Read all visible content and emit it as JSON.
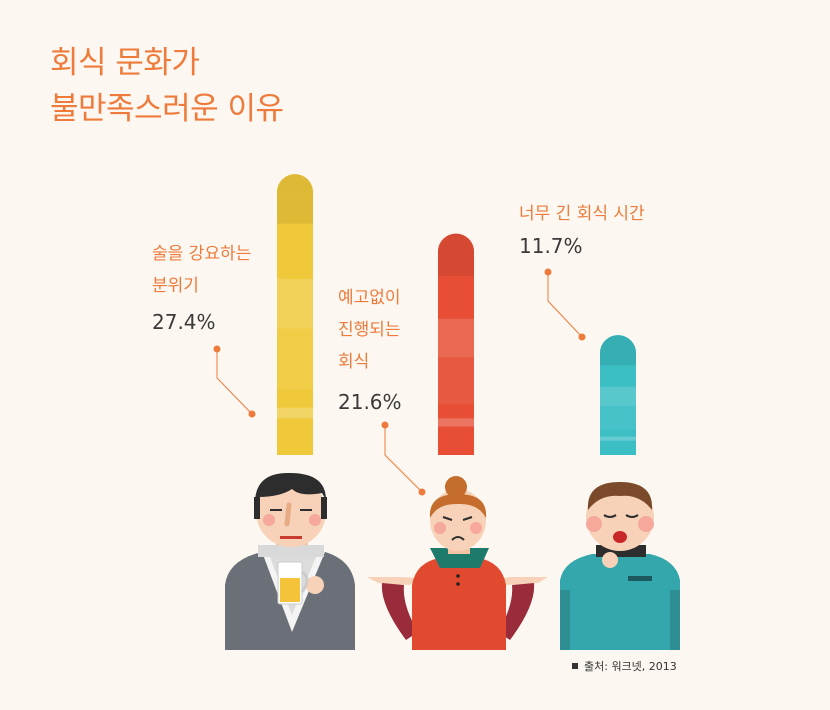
{
  "title": {
    "line1": "회식 문화가",
    "line2": "불만족스러운 이유"
  },
  "chart_data": {
    "type": "bar",
    "categories": [
      "술을 강요하는 분위기",
      "예고없이 진행되는 회식",
      "너무 긴 회식 시간"
    ],
    "values": [
      27.4,
      21.6,
      11.7
    ],
    "unit": "%",
    "colors": [
      "#f0c93a",
      "#e74e35",
      "#3bbec4"
    ]
  },
  "labels": [
    {
      "lines": [
        "술을 강요하는",
        "분위기"
      ],
      "value_text": "27.4%"
    },
    {
      "lines": [
        "예고없이",
        "진행되는",
        "회식"
      ],
      "value_text": "21.6%"
    },
    {
      "lines": [
        "너무 긴 회식 시간"
      ],
      "value_text": "11.7%"
    }
  ],
  "source": "출처: 워크넷, 2013"
}
